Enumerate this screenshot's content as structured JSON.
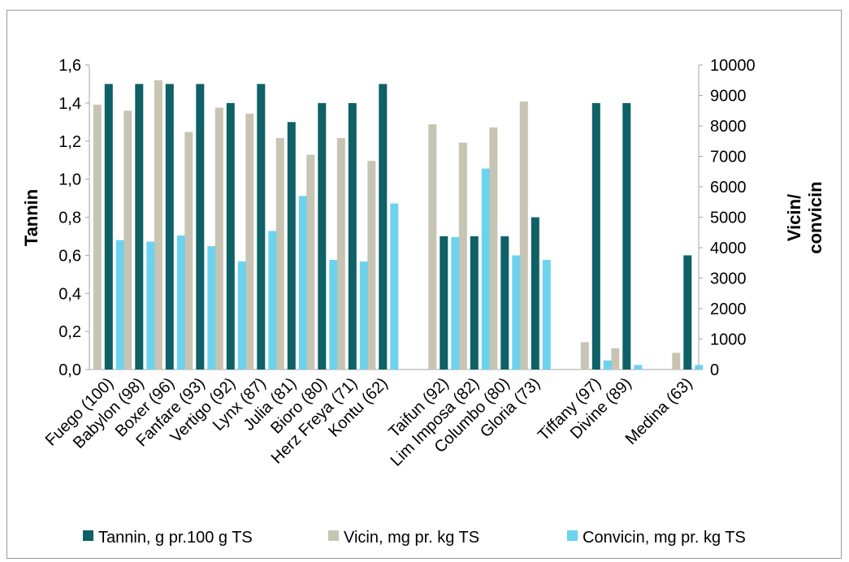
{
  "chart_data": {
    "type": "bar",
    "categories": [
      "Fuego (100)",
      "Babylon (98)",
      "Boxer (96)",
      "Fanfare (93)",
      "Vertigo (92)",
      "Lynx (87)",
      "Julia (81)",
      "Bioro (80)",
      "Herz Freya (71)",
      "Kontu (62)",
      "",
      "Taifun (92)",
      "Lim Imposa (82)",
      "Columbo (80)",
      "Gloria (73)",
      "",
      "Tiffany (97)",
      "Divine (89)",
      "",
      "Medina (63)"
    ],
    "ylabel": "Tannin",
    "y2label_lines": [
      "Vicin/",
      "convicin"
    ],
    "ylim": [
      0,
      1.6
    ],
    "y2lim": [
      0,
      10000
    ],
    "yticks": [
      "0,0",
      "0,2",
      "0,4",
      "0,6",
      "0,8",
      "1,0",
      "1,2",
      "1,4",
      "1,6"
    ],
    "y2ticks": [
      "0",
      "1000",
      "2000",
      "3000",
      "4000",
      "5000",
      "6000",
      "7000",
      "8000",
      "9000",
      "10000"
    ],
    "grid": false,
    "legend_position": "bottom",
    "series": [
      {
        "name": "Vicin, mg pr. kg TS",
        "axis": "right",
        "color": "#c8c4b4",
        "values": [
          8700,
          8500,
          9500,
          7800,
          8600,
          8400,
          7600,
          7050,
          7600,
          6850,
          null,
          8050,
          7450,
          7950,
          8800,
          null,
          900,
          700,
          null,
          550
        ]
      },
      {
        "name": "Tannin, g pr.100 g TS",
        "axis": "left",
        "color": "#0e6166",
        "values": [
          1.5,
          1.5,
          1.5,
          1.5,
          1.4,
          1.5,
          1.3,
          1.4,
          1.4,
          1.5,
          null,
          0.7,
          0.7,
          0.7,
          0.8,
          null,
          1.4,
          1.4,
          null,
          0.6
        ]
      },
      {
        "name": "Convicin, mg pr. kg TS",
        "axis": "right",
        "color": "#6dd2ee",
        "values": [
          4250,
          4200,
          4400,
          4050,
          3550,
          4550,
          5700,
          3600,
          3550,
          5450,
          null,
          4350,
          6600,
          3750,
          3600,
          null,
          300,
          150,
          null,
          150
        ]
      }
    ]
  }
}
